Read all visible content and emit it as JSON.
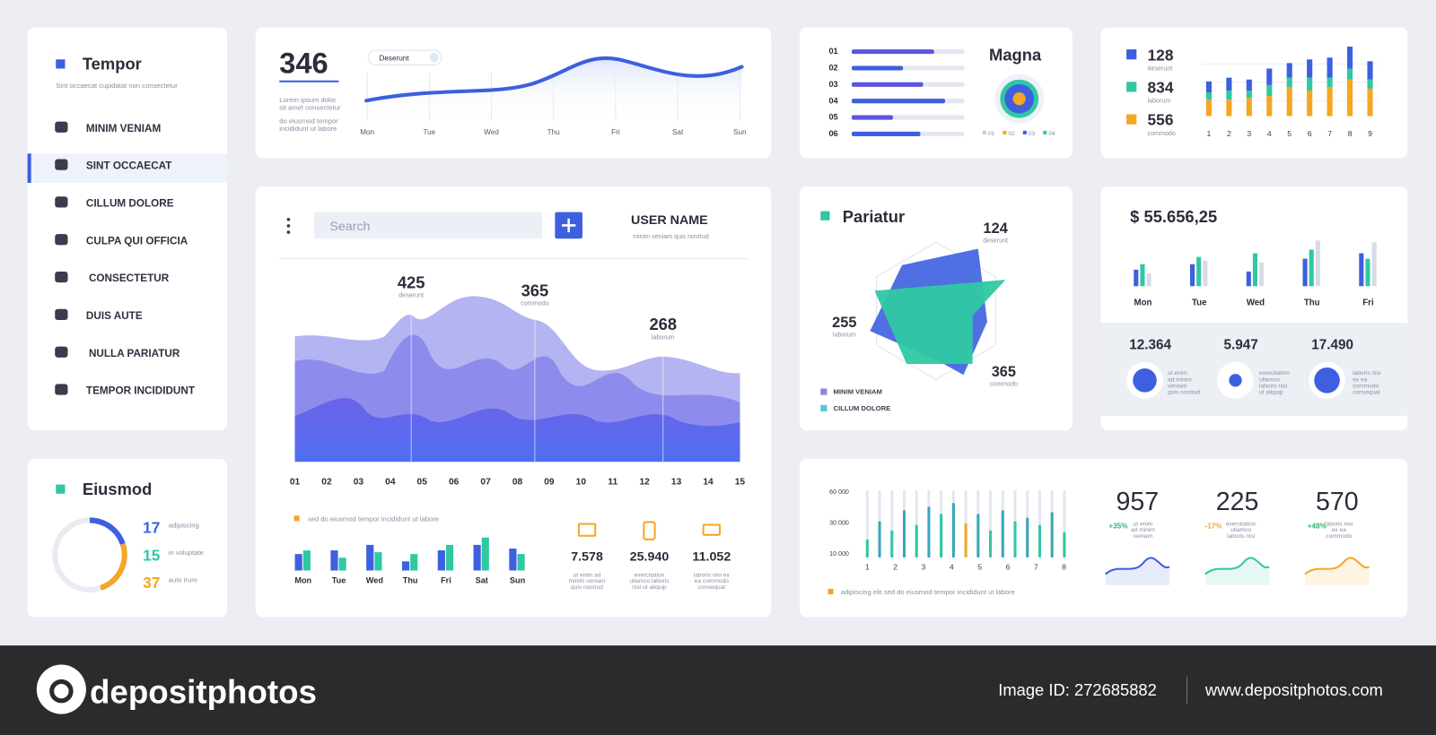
{
  "sidebar": {
    "title": "Tempor",
    "subtitle": "Sint occaecat cupidatat non consectetur",
    "items": [
      "MINIM VENIAM",
      "SINT OCCAECAT",
      "CILLUM DOLORE",
      "CULPA QUI OFFICIA",
      "CONSECTETUR",
      "DUIS AUTE",
      "NULLA PARIATUR",
      "TEMPOR INCIDIDUNT"
    ]
  },
  "trend": {
    "value": "346",
    "note_top": [
      "Lorem ipsum dolor",
      "sit amet consectetur"
    ],
    "note_bottom": [
      "do eiusmod tempor",
      "incididunt ut labore"
    ],
    "tag": "Deserunt",
    "days": [
      "Mon",
      "Tue",
      "Wed",
      "Thu",
      "Fri",
      "Sat",
      "Sun"
    ]
  },
  "magna": {
    "title": "Magna",
    "rows": [
      "01",
      "02",
      "03",
      "04",
      "05",
      "06"
    ],
    "legend": [
      "01",
      "02",
      "03",
      "04"
    ]
  },
  "counts": {
    "items": [
      {
        "value": "128",
        "label": "deserunt"
      },
      {
        "value": "834",
        "label": "laborum"
      },
      {
        "value": "556",
        "label": "commodo"
      }
    ],
    "x": [
      "1",
      "2",
      "3",
      "4",
      "5",
      "6",
      "7",
      "8",
      "9"
    ]
  },
  "main": {
    "search": "Search",
    "user": "USER NAME",
    "user_note": "minim veniam quis nostrud",
    "peaks": [
      {
        "value": "425",
        "label": "deserunt"
      },
      {
        "value": "365",
        "label": "commodo"
      },
      {
        "value": "268",
        "label": "laborum"
      }
    ],
    "x": [
      "01",
      "02",
      "03",
      "04",
      "05",
      "06",
      "07",
      "08",
      "09",
      "10",
      "11",
      "12",
      "13",
      "14",
      "15"
    ],
    "legend": "sed do eiusmod tempor incididunt ut labore",
    "days": [
      "Mon",
      "Tue",
      "Wed",
      "Thu",
      "Fri",
      "Sat",
      "Sun"
    ],
    "kpis": [
      {
        "value": "7.578",
        "label": [
          "ut enim ad",
          "minim veniam",
          "quis nostrud"
        ]
      },
      {
        "value": "25.940",
        "label": [
          "exercitation",
          "ullamco laboris",
          "nisi ut aliquip"
        ]
      },
      {
        "value": "11.052",
        "label": [
          "laboris nisi ex",
          "ea commodo",
          "consequat"
        ]
      }
    ]
  },
  "eiusmod": {
    "title": "Eiusmod",
    "items": [
      {
        "value": "17",
        "label": "adipiscing"
      },
      {
        "value": "15",
        "label": "in voluptate"
      },
      {
        "value": "37",
        "label": "aute irure"
      }
    ]
  },
  "pariatur": {
    "title": "Pariatur",
    "points": [
      {
        "value": "124",
        "label": "deserunt"
      },
      {
        "value": "255",
        "label": "laborum"
      },
      {
        "value": "365",
        "label": "commodo"
      }
    ],
    "legend": [
      "MINIM VENIAM",
      "CILLUM DOLORE"
    ]
  },
  "balance": {
    "total": "$ 55.656,25",
    "days": [
      "Mon",
      "Tue",
      "Wed",
      "Thu",
      "Fri"
    ],
    "kpis": [
      {
        "value": "12.364",
        "label": [
          "ut enim",
          "ad minim",
          "veniam",
          "quis nostrud"
        ]
      },
      {
        "value": "5.947",
        "label": [
          "exercitation",
          "ullamco",
          "laboris nisi",
          "ut aliquip"
        ]
      },
      {
        "value": "17.490",
        "label": [
          "laboris nisi",
          "ex ea",
          "commodo",
          "consequat"
        ]
      }
    ]
  },
  "activity": {
    "yticks": [
      "60 000",
      "30 000",
      "10 000"
    ],
    "x": [
      "1",
      "2",
      "3",
      "4",
      "5",
      "6",
      "7",
      "8"
    ],
    "legend": "adipiscing elit sed do eiusmod tempor incididunt ut labore",
    "kpis": [
      {
        "value": "957",
        "change": "+35%",
        "label": [
          "ut enim",
          "ad minim",
          "veniam"
        ]
      },
      {
        "value": "225",
        "change": "-17%",
        "label": [
          "exercitation",
          "ullamco",
          "laboris nisi"
        ]
      },
      {
        "value": "570",
        "change": "+48%",
        "label": [
          "laboris nisi",
          "ex ea",
          "commodo"
        ]
      }
    ]
  },
  "footer": {
    "brand": "depositphotos",
    "image_id": "Image ID: 272685882",
    "url": "www.depositphotos.com"
  }
}
